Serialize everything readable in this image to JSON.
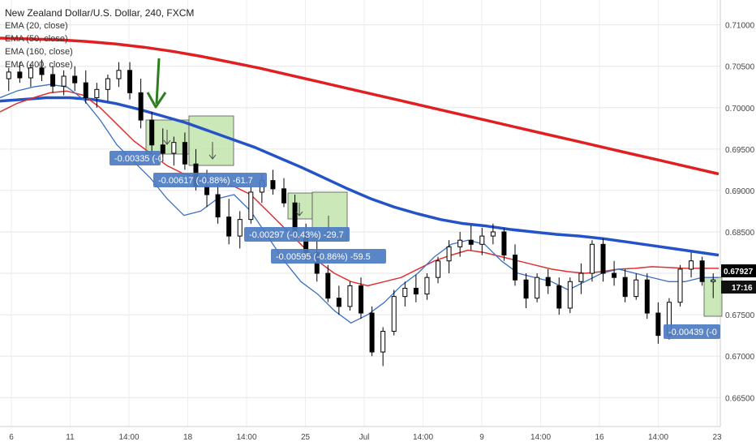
{
  "header": {
    "title": "New Zealand Dollar/U.S. Dollar, 240, FXCM",
    "indicators": [
      "EMA (20, close)",
      "EMA (50, close)",
      "EMA (160, close)",
      "EMA (400, close)"
    ]
  },
  "chart_data": {
    "type": "candlestick",
    "ylim": [
      0.6615,
      0.713
    ],
    "y_ticks": [
      "0.71000",
      "0.70500",
      "0.70000",
      "0.69500",
      "0.69000",
      "0.68500",
      "0.68000",
      "0.67500",
      "0.67000",
      "0.66500"
    ],
    "x_tick_labels": [
      "6",
      "11",
      "14:00",
      "18",
      "14:00",
      "25",
      "Jul",
      "14:00",
      "9",
      "14:00",
      "16",
      "14:00",
      "23"
    ],
    "last_price": "0.67927",
    "time_badge": "17:16",
    "candles_approx": [
      [
        0.7035,
        0.7048,
        0.702,
        0.7043
      ],
      [
        0.7043,
        0.7055,
        0.703,
        0.7036
      ],
      [
        0.7036,
        0.7052,
        0.7025,
        0.7048
      ],
      [
        0.7048,
        0.7058,
        0.7032,
        0.704
      ],
      [
        0.704,
        0.705,
        0.7018,
        0.7026
      ],
      [
        0.7026,
        0.7045,
        0.7015,
        0.7038
      ],
      [
        0.7038,
        0.705,
        0.702,
        0.703
      ],
      [
        0.703,
        0.7045,
        0.7005,
        0.7012
      ],
      [
        0.7012,
        0.703,
        0.7,
        0.7022
      ],
      [
        0.7022,
        0.704,
        0.7008,
        0.7035
      ],
      [
        0.7035,
        0.7055,
        0.7025,
        0.7045
      ],
      [
        0.7045,
        0.7055,
        0.701,
        0.7018
      ],
      [
        0.7018,
        0.7035,
        0.6975,
        0.6985
      ],
      [
        0.6985,
        0.6995,
        0.6945,
        0.6955
      ],
      [
        0.6955,
        0.6975,
        0.6935,
        0.6945
      ],
      [
        0.6945,
        0.6965,
        0.693,
        0.6958
      ],
      [
        0.6958,
        0.697,
        0.6925,
        0.6932
      ],
      [
        0.6932,
        0.695,
        0.69,
        0.6905
      ],
      [
        0.6905,
        0.6925,
        0.688,
        0.6895
      ],
      [
        0.6895,
        0.6915,
        0.686,
        0.6868
      ],
      [
        0.6868,
        0.689,
        0.6835,
        0.6845
      ],
      [
        0.6845,
        0.6875,
        0.683,
        0.6865
      ],
      [
        0.6865,
        0.6905,
        0.686,
        0.6898
      ],
      [
        0.6898,
        0.692,
        0.6885,
        0.6912
      ],
      [
        0.6912,
        0.6925,
        0.6895,
        0.6902
      ],
      [
        0.6902,
        0.6915,
        0.688,
        0.6885
      ],
      [
        0.6885,
        0.6895,
        0.684,
        0.6848
      ],
      [
        0.6848,
        0.686,
        0.6815,
        0.6825
      ],
      [
        0.6825,
        0.684,
        0.679,
        0.68
      ],
      [
        0.68,
        0.681,
        0.6765,
        0.677
      ],
      [
        0.677,
        0.6785,
        0.675,
        0.676
      ],
      [
        0.676,
        0.679,
        0.6755,
        0.6785
      ],
      [
        0.6785,
        0.6795,
        0.6745,
        0.6752
      ],
      [
        0.6752,
        0.676,
        0.67,
        0.6705
      ],
      [
        0.6705,
        0.6735,
        0.6688,
        0.673
      ],
      [
        0.673,
        0.678,
        0.6725,
        0.6772
      ],
      [
        0.6772,
        0.679,
        0.676,
        0.6782
      ],
      [
        0.6782,
        0.6798,
        0.6765,
        0.6775
      ],
      [
        0.6775,
        0.68,
        0.6768,
        0.6795
      ],
      [
        0.6795,
        0.682,
        0.6788,
        0.6815
      ],
      [
        0.6815,
        0.684,
        0.68,
        0.6832
      ],
      [
        0.6832,
        0.685,
        0.682,
        0.684
      ],
      [
        0.684,
        0.6858,
        0.6828,
        0.6835
      ],
      [
        0.6835,
        0.6855,
        0.6822,
        0.6845
      ],
      [
        0.6845,
        0.686,
        0.6835,
        0.685
      ],
      [
        0.685,
        0.6855,
        0.6815,
        0.6822
      ],
      [
        0.6822,
        0.6835,
        0.6785,
        0.6792
      ],
      [
        0.6792,
        0.68,
        0.6758,
        0.677
      ],
      [
        0.677,
        0.68,
        0.6765,
        0.6795
      ],
      [
        0.6795,
        0.6805,
        0.6775,
        0.6785
      ],
      [
        0.6785,
        0.6795,
        0.675,
        0.6758
      ],
      [
        0.6758,
        0.6795,
        0.6752,
        0.679
      ],
      [
        0.679,
        0.6812,
        0.6775,
        0.68
      ],
      [
        0.68,
        0.684,
        0.679,
        0.6835
      ],
      [
        0.6835,
        0.6842,
        0.679,
        0.68
      ],
      [
        0.68,
        0.6815,
        0.6785,
        0.6795
      ],
      [
        0.6795,
        0.6805,
        0.6765,
        0.6772
      ],
      [
        0.6772,
        0.68,
        0.6768,
        0.6792
      ],
      [
        0.6792,
        0.68,
        0.6745,
        0.6752
      ],
      [
        0.6752,
        0.6765,
        0.6715,
        0.6725
      ],
      [
        0.6725,
        0.677,
        0.672,
        0.6765
      ],
      [
        0.6765,
        0.681,
        0.676,
        0.6805
      ],
      [
        0.6805,
        0.6825,
        0.6795,
        0.6815
      ],
      [
        0.6815,
        0.682,
        0.6785,
        0.679
      ],
      [
        0.679,
        0.68,
        0.677,
        0.6792
      ]
    ],
    "ema_20": [
      0.7012,
      0.702,
      0.7025,
      0.7028,
      0.7025,
      0.701,
      0.6985,
      0.6955,
      0.6935,
      0.6915,
      0.689,
      0.687,
      0.6875,
      0.689,
      0.6895,
      0.6875,
      0.6845,
      0.6815,
      0.679,
      0.6775,
      0.6755,
      0.674,
      0.675,
      0.6765,
      0.6785,
      0.68,
      0.682,
      0.6835,
      0.684,
      0.6835,
      0.6815,
      0.68,
      0.6795,
      0.679,
      0.678,
      0.679,
      0.68,
      0.6805,
      0.68,
      0.6795,
      0.679,
      0.679,
      0.6795,
      0.6795
    ],
    "ema_50": [
      0.6995,
      0.7005,
      0.7012,
      0.7018,
      0.702,
      0.7015,
      0.7,
      0.698,
      0.696,
      0.6945,
      0.693,
      0.692,
      0.6915,
      0.691,
      0.6905,
      0.6895,
      0.6875,
      0.6855,
      0.6835,
      0.6815,
      0.68,
      0.679,
      0.6785,
      0.679,
      0.6795,
      0.6805,
      0.6815,
      0.6822,
      0.6828,
      0.6825,
      0.682,
      0.6815,
      0.681,
      0.6805,
      0.6802,
      0.68,
      0.6802,
      0.6805,
      0.6806,
      0.6808,
      0.6807,
      0.6806,
      0.6806,
      0.6806
    ],
    "ema_160": [
      0.7008,
      0.701,
      0.7012,
      0.7012,
      0.701,
      0.7005,
      0.6998,
      0.699,
      0.6982,
      0.6972,
      0.6962,
      0.6952,
      0.694,
      0.6928,
      0.6915,
      0.6902,
      0.689,
      0.688,
      0.6872,
      0.6865,
      0.686,
      0.6857,
      0.6853,
      0.685,
      0.6847,
      0.6845,
      0.6842,
      0.6838,
      0.6834,
      0.683,
      0.6826,
      0.6822
    ],
    "ema_400": [
      0.7084,
      0.7083,
      0.7082,
      0.708,
      0.7077,
      0.7073,
      0.7068,
      0.7062,
      0.7055,
      0.7048,
      0.704,
      0.7032,
      0.7024,
      0.7016,
      0.7008,
      0.7,
      0.6992,
      0.6984,
      0.6976,
      0.6968,
      0.696,
      0.6952,
      0.6944,
      0.6936,
      0.6928,
      0.692
    ],
    "annotations": [
      "-0.00335 (-0.",
      "-0.00617 (-0.88%) -61.7",
      "-0.00297 (-0.43%) -29.7",
      "-0.00595 (-0.86%) -59.5",
      "-0.00439 (-0"
    ],
    "colors": {
      "ema_20": "#3a6fc4",
      "ema_50": "#e03030",
      "ema_160": "#2453c7",
      "ema_400": "#e02020",
      "arrow": "#2e7d1e",
      "box": "#b8e0a0",
      "tag": "#4c7bc2"
    }
  }
}
